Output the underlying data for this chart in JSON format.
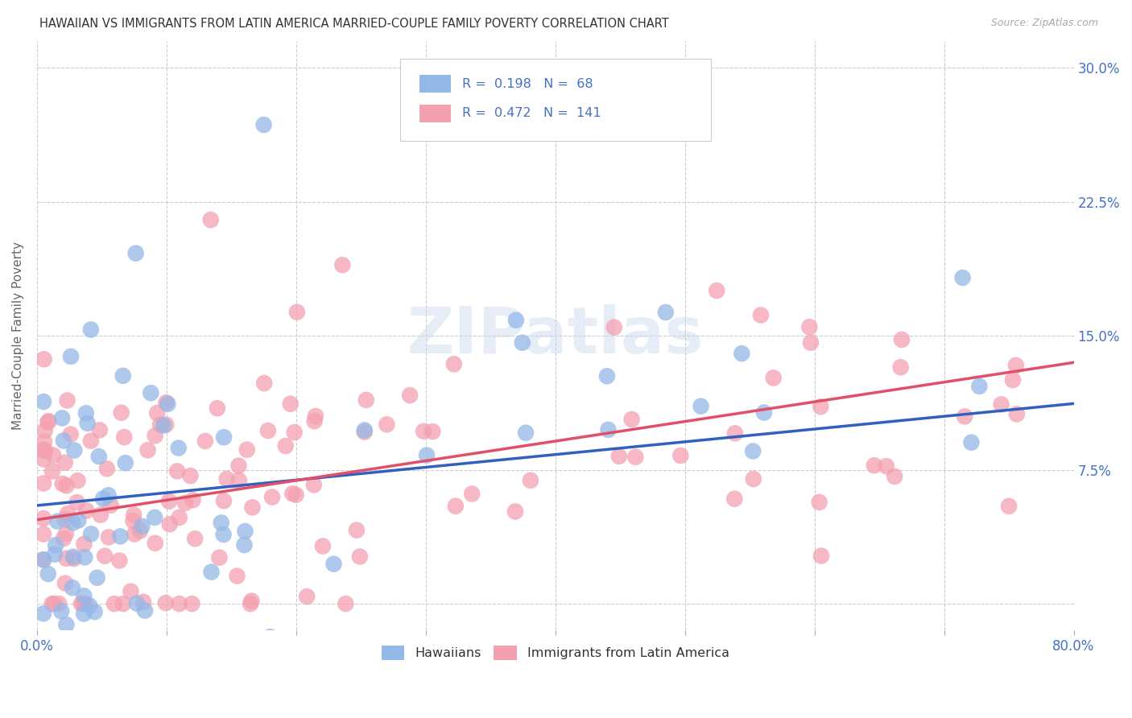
{
  "title": "HAWAIIAN VS IMMIGRANTS FROM LATIN AMERICA MARRIED-COUPLE FAMILY POVERTY CORRELATION CHART",
  "source": "Source: ZipAtlas.com",
  "ylabel": "Married-Couple Family Poverty",
  "hawaiian_R": 0.198,
  "hawaiian_N": 68,
  "latin_R": 0.472,
  "latin_N": 141,
  "hawaiian_color": "#94b8e8",
  "latin_color": "#f4a0b0",
  "hawaiian_line_color": "#3060c0",
  "latin_line_color": "#e0506a",
  "legend_label_hawaiians": "Hawaiians",
  "legend_label_latin": "Immigrants from Latin America",
  "watermark": "ZIPatlas",
  "background_color": "#ffffff",
  "axis_label_color": "#4472c4",
  "xlim": [
    0.0,
    0.8
  ],
  "ylim": [
    -0.015,
    0.315
  ],
  "ytick_vals": [
    0.0,
    0.075,
    0.15,
    0.225,
    0.3
  ],
  "ytick_labels": [
    "",
    "7.5%",
    "15.0%",
    "22.5%",
    "30.0%"
  ],
  "xtick_vals": [
    0.0,
    0.1,
    0.2,
    0.3,
    0.4,
    0.5,
    0.6,
    0.7,
    0.8
  ],
  "haw_line_x0": 0.0,
  "haw_line_x1": 0.8,
  "haw_line_y0": 0.055,
  "haw_line_y1": 0.112,
  "lat_line_x0": 0.0,
  "lat_line_x1": 0.8,
  "lat_line_y0": 0.047,
  "lat_line_y1": 0.135
}
